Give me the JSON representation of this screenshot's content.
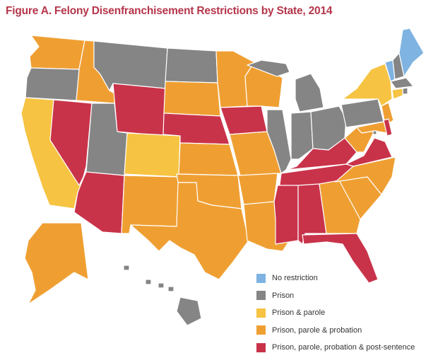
{
  "title": "Figure A. Felony Disenfranchisement Restrictions by State, 2014",
  "legend": [
    {
      "key": "none",
      "label": "No restriction",
      "color": "#7fb3e1"
    },
    {
      "key": "prison",
      "label": "Prison",
      "color": "#858585"
    },
    {
      "key": "parole",
      "label": "Prison & parole",
      "color": "#f6c342"
    },
    {
      "key": "probation",
      "label": "Prison, parole & probation",
      "color": "#ef9f32"
    },
    {
      "key": "post",
      "label": "Prison, parole, probation & post-sentence",
      "color": "#c9334a"
    }
  ],
  "states": {
    "WA": "probation",
    "OR": "prison",
    "CA": "parole",
    "NV": "post",
    "ID": "probation",
    "MT": "prison",
    "WY": "post",
    "UT": "prison",
    "AZ": "post",
    "CO": "parole",
    "NM": "probation",
    "ND": "prison",
    "SD": "probation",
    "NE": "post",
    "KS": "probation",
    "OK": "probation",
    "TX": "probation",
    "MN": "probation",
    "IA": "post",
    "MO": "probation",
    "AR": "probation",
    "LA": "probation",
    "WI": "probation",
    "IL": "prison",
    "MI": "prison",
    "IN": "prison",
    "OH": "prison",
    "KY": "post",
    "TN": "post",
    "MS": "post",
    "AL": "post",
    "GA": "probation",
    "FL": "post",
    "SC": "probation",
    "NC": "probation",
    "VA": "post",
    "WV": "probation",
    "PA": "prison",
    "NY": "parole",
    "VT": "none",
    "NH": "prison",
    "ME": "none",
    "MA": "prison",
    "RI": "prison",
    "CT": "parole",
    "NJ": "probation",
    "DE": "post",
    "MD": "probation",
    "DC": "prison",
    "AK": "probation",
    "HI": "prison"
  }
}
